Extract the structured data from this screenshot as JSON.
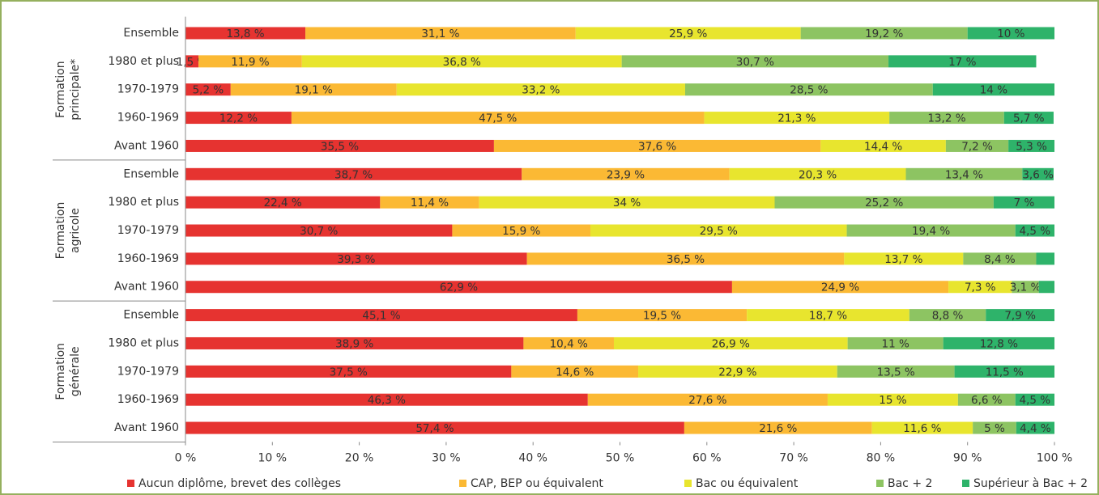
{
  "chart_data": {
    "type": "stacked-bar-horizontal",
    "groups": [
      {
        "label": [
          "Formation",
          "principale*"
        ],
        "categories": [
          "Ensemble",
          "1980 et plus",
          "1970-1979",
          "1960-1969",
          "Avant 1960"
        ]
      },
      {
        "label": [
          "Formation",
          "agricole"
        ],
        "categories": [
          "Ensemble",
          "1980 et plus",
          "1970-1979",
          "1960-1969",
          "Avant 1960"
        ]
      },
      {
        "label": [
          "Formation",
          "générale"
        ],
        "categories": [
          "Ensemble",
          "1980 et plus",
          "1970-1979",
          "1960-1969",
          "Avant 1960"
        ]
      }
    ],
    "series": [
      {
        "name": "Aucun diplôme, brevet des collèges",
        "color": "#e63330",
        "values": [
          13.8,
          1.5,
          5.2,
          12.2,
          35.5,
          38.7,
          22.4,
          30.7,
          39.3,
          62.9,
          45.1,
          38.9,
          37.5,
          46.3,
          57.4
        ],
        "value_labels": [
          "13,8 %",
          "1,5 %",
          "5,2 %",
          "12,2 %",
          "35,5 %",
          "38,7 %",
          "22,4 %",
          "30,7 %",
          "39,3 %",
          "62,9 %",
          "45,1 %",
          "38,9 %",
          "37,5 %",
          "46,3 %",
          "57,4 %"
        ]
      },
      {
        "name": "CAP, BEP ou équivalent",
        "color": "#fbb934",
        "values": [
          31.1,
          11.9,
          19.1,
          47.5,
          37.6,
          23.9,
          11.4,
          15.9,
          36.5,
          24.9,
          19.5,
          10.4,
          14.6,
          27.6,
          21.6
        ],
        "value_labels": [
          "31,1 %",
          "11,9 %",
          "19,1 %",
          "47,5 %",
          "37,6 %",
          "23,9 %",
          "11,4 %",
          "15,9 %",
          "36,5 %",
          "24,9 %",
          "19,5 %",
          "10,4 %",
          "14,6 %",
          "27,6 %",
          "21,6 %"
        ]
      },
      {
        "name": "Bac ou équivalent",
        "color": "#e8e52e",
        "values": [
          25.9,
          36.8,
          33.2,
          21.3,
          14.4,
          20.3,
          34,
          29.5,
          13.7,
          7.3,
          18.7,
          26.9,
          22.9,
          15,
          11.6
        ],
        "value_labels": [
          "25,9 %",
          "36,8 %",
          "33,2 %",
          "21,3 %",
          "14,4 %",
          "20,3 %",
          "34 %",
          "29,5 %",
          "13,7 %",
          "7,3 %",
          "18,7 %",
          "26,9 %",
          "22,9 %",
          "15 %",
          "11,6 %"
        ]
      },
      {
        "name": "Bac + 2",
        "color": "#8dc462",
        "values": [
          19.2,
          30.7,
          28.5,
          13.2,
          7.2,
          13.4,
          25.2,
          19.4,
          8.4,
          3.1,
          8.8,
          11,
          13.5,
          6.6,
          5
        ],
        "value_labels": [
          "19,2 %",
          "30,7 %",
          "28,5 %",
          "13,2 %",
          "7,2 %",
          "13,4 %",
          "25,2 %",
          "19,4 %",
          "8,4 %",
          "3,1 %",
          "8,8 %",
          "11 %",
          "13,5 %",
          "6,6 %",
          "5 %"
        ]
      },
      {
        "name": "Supérieur à Bac + 2",
        "color": "#2eb36a",
        "values": [
          10,
          17,
          14,
          5.7,
          5.3,
          3.6,
          7,
          4.5,
          2.1,
          1.8,
          7.9,
          12.8,
          11.5,
          4.5,
          4.4
        ],
        "value_labels": [
          "10 %",
          "17 %",
          "14 %",
          "5,7 %",
          "5,3 %",
          "3,6 %",
          "7 %",
          "4,5 %",
          null,
          null,
          "7,9 %",
          "12,8 %",
          "11,5 %",
          "4,5 %",
          "4,4 %"
        ]
      }
    ],
    "xlim": [
      0,
      100
    ],
    "xticks": [
      {
        "value": 0,
        "label": "0 %"
      },
      {
        "value": 10,
        "label": "10 %"
      },
      {
        "value": 20,
        "label": "20 %"
      },
      {
        "value": 30,
        "label": "30 %"
      },
      {
        "value": 40,
        "label": "40 %"
      },
      {
        "value": 50,
        "label": "50 %"
      },
      {
        "value": 60,
        "label": "60 %"
      },
      {
        "value": 70,
        "label": "70 %"
      },
      {
        "value": 80,
        "label": "80 %"
      },
      {
        "value": 90,
        "label": "90 %"
      },
      {
        "value": 100,
        "label": "100 %"
      }
    ],
    "legend": "bottom"
  }
}
